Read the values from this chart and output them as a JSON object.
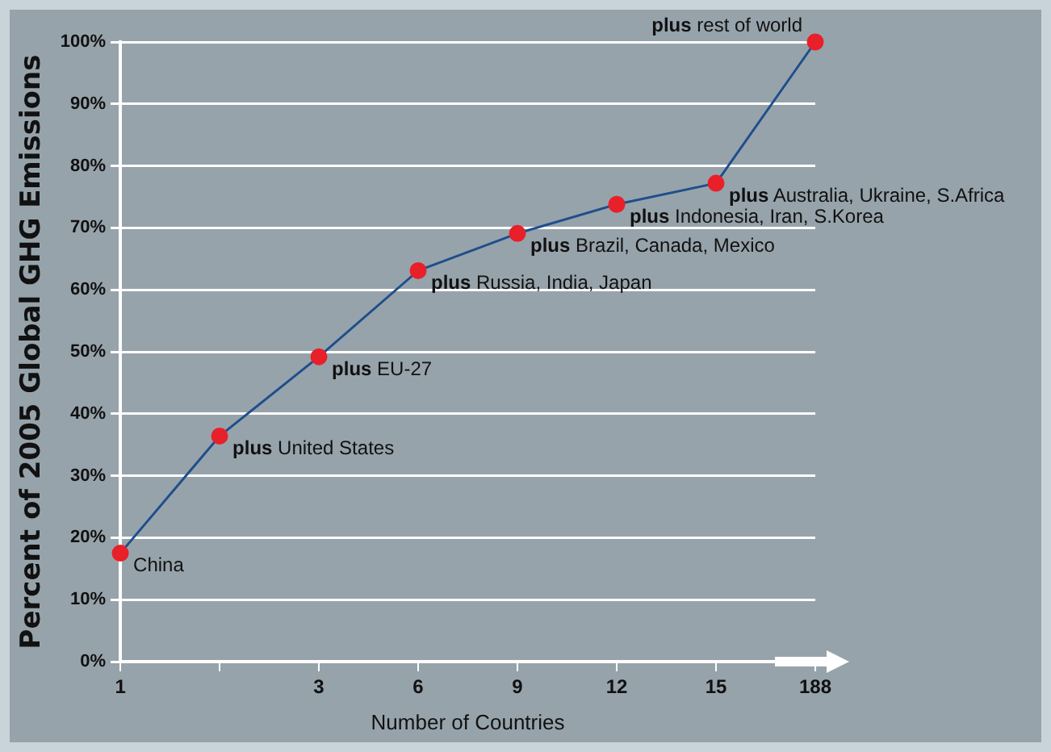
{
  "chart_data": {
    "type": "line",
    "xlabel": "Number of Countries",
    "ylabel": "Percent of 2005 Global GHG Emissions",
    "categories": [
      "1",
      null,
      "3",
      "6",
      "9",
      "12",
      "15",
      "188"
    ],
    "series": [
      {
        "color": "#1f4e8c",
        "colors": [
          "#e8202a",
          "#e8202a",
          "#e8202a",
          "#e8202a",
          "#e8202a",
          "#e8202a",
          "#e8202a",
          "#e8202a"
        ],
        "values": [
          17.5,
          36.4,
          49.2,
          63.1,
          69.1,
          73.8,
          77.2,
          100
        ]
      }
    ],
    "marker": "circle",
    "ylim": [
      0,
      100
    ],
    "yticks": [
      {
        "value": 0,
        "label": "0%"
      },
      {
        "value": 10,
        "label": "10%"
      },
      {
        "value": 20,
        "label": "20%"
      },
      {
        "value": 30,
        "label": "30%"
      },
      {
        "value": 40,
        "label": "40%"
      },
      {
        "value": 50,
        "label": "50%"
      },
      {
        "value": 60,
        "label": "60%"
      },
      {
        "value": 70,
        "label": "70%"
      },
      {
        "value": 80,
        "label": "80%"
      },
      {
        "value": 90,
        "label": "90%"
      },
      {
        "value": 100,
        "label": "100%"
      }
    ],
    "grid": "y",
    "legend": false,
    "annotations": [
      "China",
      "plus United States",
      "plus EU-27",
      "plus Russia, India, Japan",
      "plus Brazil, Canada, Mexico",
      "plus Indonesia, Iran, S.Korea",
      "plus Australia, Ukraine, S.Africa",
      "plus rest of world"
    ]
  }
}
